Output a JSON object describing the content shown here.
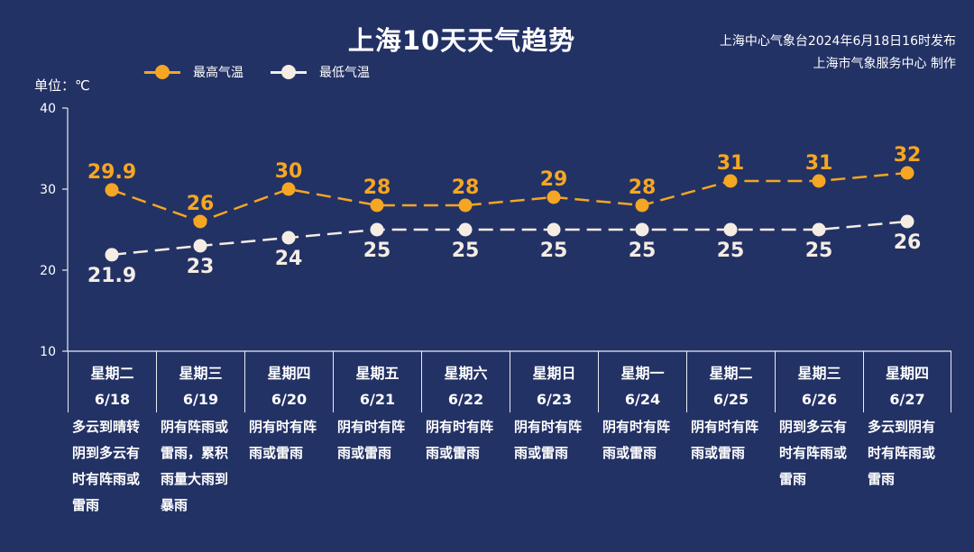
{
  "header": {
    "title": "上海10天天气趋势",
    "source_line1": "上海中心气象台2024年6月18日16时发布",
    "source_line2": "上海市气象服务中心 制作"
  },
  "unit": "单位：℃",
  "legend": [
    {
      "label": "最高气温",
      "color": "#f5a623"
    },
    {
      "label": "最低气温",
      "color": "#f5ede4"
    }
  ],
  "days": [
    {
      "weekday": "星期二",
      "date": "6/18",
      "desc": "多云到晴转\n阴到多云有\n时有阵雨或\n雷雨"
    },
    {
      "weekday": "星期三",
      "date": "6/19",
      "desc": "阴有阵雨或\n雷雨，累积\n雨量大雨到\n暴雨"
    },
    {
      "weekday": "星期四",
      "date": "6/20",
      "desc": "阴有时有阵\n雨或雷雨"
    },
    {
      "weekday": "星期五",
      "date": "6/21",
      "desc": "阴有时有阵\n雨或雷雨"
    },
    {
      "weekday": "星期六",
      "date": "6/22",
      "desc": "阴有时有阵\n雨或雷雨"
    },
    {
      "weekday": "星期日",
      "date": "6/23",
      "desc": "阴有时有阵\n雨或雷雨"
    },
    {
      "weekday": "星期一",
      "date": "6/24",
      "desc": "阴有时有阵\n雨或雷雨"
    },
    {
      "weekday": "星期二",
      "date": "6/25",
      "desc": "阴有时有阵\n雨或雷雨"
    },
    {
      "weekday": "星期三",
      "date": "6/26",
      "desc": "阴到多云有\n时有阵雨或\n雷雨"
    },
    {
      "weekday": "星期四",
      "date": "6/27",
      "desc": "多云到阴有\n时有阵雨或\n雷雨"
    }
  ],
  "chart_data": {
    "type": "line",
    "title": "上海10天天气趋势",
    "xlabel": "",
    "ylabel": "单位：℃",
    "categories": [
      "6/18",
      "6/19",
      "6/20",
      "6/21",
      "6/22",
      "6/23",
      "6/24",
      "6/25",
      "6/26",
      "6/27"
    ],
    "series": [
      {
        "name": "最高气温",
        "color": "#f5a623",
        "values": [
          29.9,
          26,
          30,
          28,
          28,
          29,
          28,
          31,
          31,
          32
        ],
        "labels": [
          "29.9",
          "26",
          "30",
          "28",
          "28",
          "29",
          "28",
          "31",
          "31",
          "32"
        ]
      },
      {
        "name": "最低气温",
        "color": "#f5ede4",
        "values": [
          21.9,
          23,
          24,
          25,
          25,
          25,
          25,
          25,
          25,
          26
        ],
        "labels": [
          "21.9",
          "23",
          "24",
          "25",
          "25",
          "25",
          "25",
          "25",
          "25",
          "26"
        ]
      }
    ],
    "ylim": [
      10,
      40
    ],
    "yticks": [
      10,
      20,
      30,
      40
    ],
    "grid": false,
    "legend_position": "top"
  }
}
